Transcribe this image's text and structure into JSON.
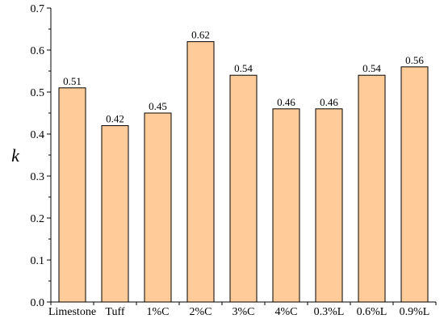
{
  "chart_data": {
    "type": "bar",
    "categories": [
      "Limestone",
      "Tuff",
      "1%C",
      "2%C",
      "3%C",
      "4%C",
      "0.3%L",
      "0.6%L",
      "0.9%L"
    ],
    "values": [
      0.51,
      0.42,
      0.45,
      0.62,
      0.54,
      0.46,
      0.46,
      0.54,
      0.56
    ],
    "data_labels": [
      "0.51",
      "0.42",
      "0.45",
      "0.62",
      "0.54",
      "0.46",
      "0.46",
      "0.54",
      "0.56"
    ],
    "title": "",
    "xlabel": "",
    "ylabel": "k",
    "ylim": [
      0.0,
      0.7
    ],
    "yticks": [
      0.0,
      0.1,
      0.2,
      0.3,
      0.4,
      0.5,
      0.6,
      0.7
    ],
    "ytick_labels": [
      "0.0",
      "0.1",
      "0.2",
      "0.3",
      "0.4",
      "0.5",
      "0.6",
      "0.7"
    ],
    "grid": false,
    "legend": "none",
    "bar_color": "#FFCC99",
    "edge_color": "#000000"
  }
}
